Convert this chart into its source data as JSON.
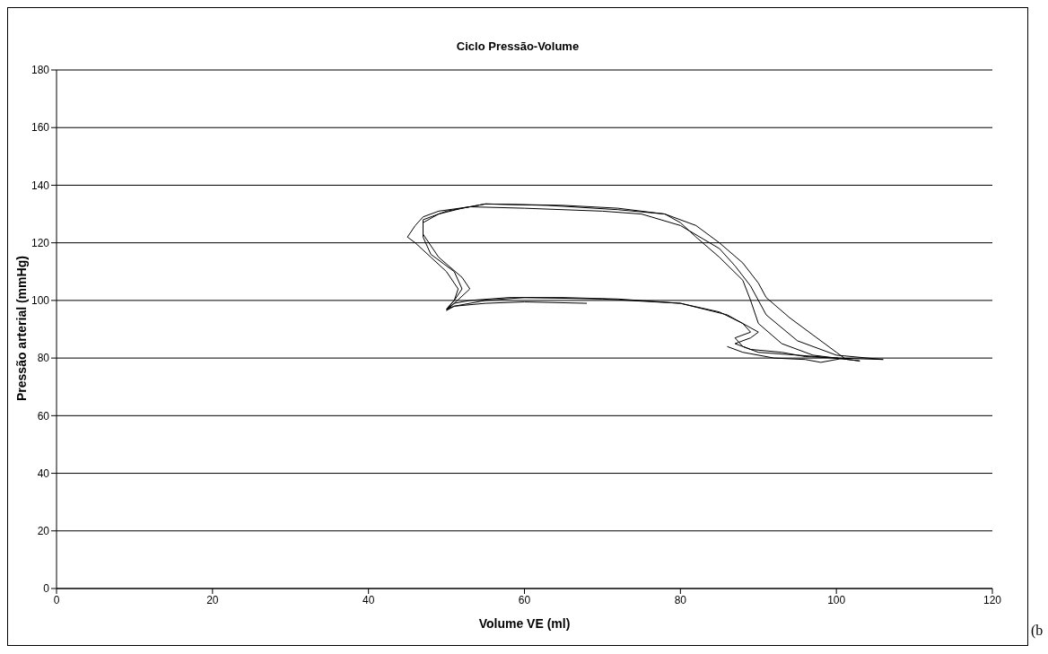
{
  "chart_data": {
    "type": "line",
    "title": "Ciclo Pressão-Volume",
    "xlabel": "Volume VE (ml)",
    "ylabel": "Pressão arterial (mmHg)",
    "xlim": [
      0,
      120
    ],
    "xticks": [
      0,
      20,
      40,
      60,
      80,
      100,
      120
    ],
    "ylim": [
      0,
      180
    ],
    "yticks": [
      0,
      20,
      40,
      60,
      80,
      100,
      120,
      140,
      160,
      180
    ],
    "grid": "y",
    "legend": false,
    "marker": "none",
    "line_style": "solid",
    "annotations": [
      "(b"
    ],
    "series": [
      {
        "color": "#000000",
        "x": [
          68,
          60,
          55,
          51,
          50,
          51,
          51.5,
          50,
          48,
          46,
          45,
          46,
          47,
          49,
          53,
          60,
          70,
          75,
          80,
          85,
          87,
          89,
          91,
          95,
          100,
          106,
          100,
          95,
          90,
          88,
          87,
          89,
          88,
          85,
          80,
          72,
          65,
          58,
          53,
          51,
          50,
          51,
          52,
          51,
          48,
          47,
          47,
          49,
          52,
          55,
          65,
          72,
          78,
          80,
          82,
          85,
          88,
          89,
          90,
          93,
          97,
          103,
          100,
          96,
          93,
          89,
          87,
          89,
          90,
          86,
          80,
          70,
          60,
          55,
          51,
          50,
          51,
          53,
          52,
          49,
          47,
          47,
          50,
          55,
          63,
          72,
          78,
          82,
          85,
          88,
          90,
          91,
          94,
          97,
          100,
          101,
          98,
          96,
          92,
          88,
          86
        ],
        "values": [
          99,
          99.5,
          99,
          98,
          97,
          100,
          104,
          110,
          115,
          120,
          122,
          126,
          129,
          131,
          132.5,
          132,
          131,
          130,
          126,
          118,
          112,
          105,
          95,
          86,
          81,
          79.5,
          80,
          81,
          82,
          84,
          87,
          89,
          92,
          96,
          99,
          100.5,
          101,
          101,
          100,
          99,
          97,
          100,
          104,
          110,
          116,
          122,
          127,
          130,
          132,
          133.5,
          133,
          132,
          130,
          127,
          122,
          115,
          107,
          100,
          92,
          85,
          81,
          79,
          80,
          80.5,
          82,
          83,
          85,
          87,
          89,
          95,
          99,
          100.5,
          101,
          100,
          98,
          96.5,
          99,
          104,
          108,
          115,
          123,
          128,
          131,
          133.5,
          133,
          131.5,
          130,
          126,
          120,
          113,
          106,
          101,
          94,
          88,
          82,
          80,
          78.5,
          79.5,
          80,
          82,
          84
        ]
      }
    ]
  }
}
